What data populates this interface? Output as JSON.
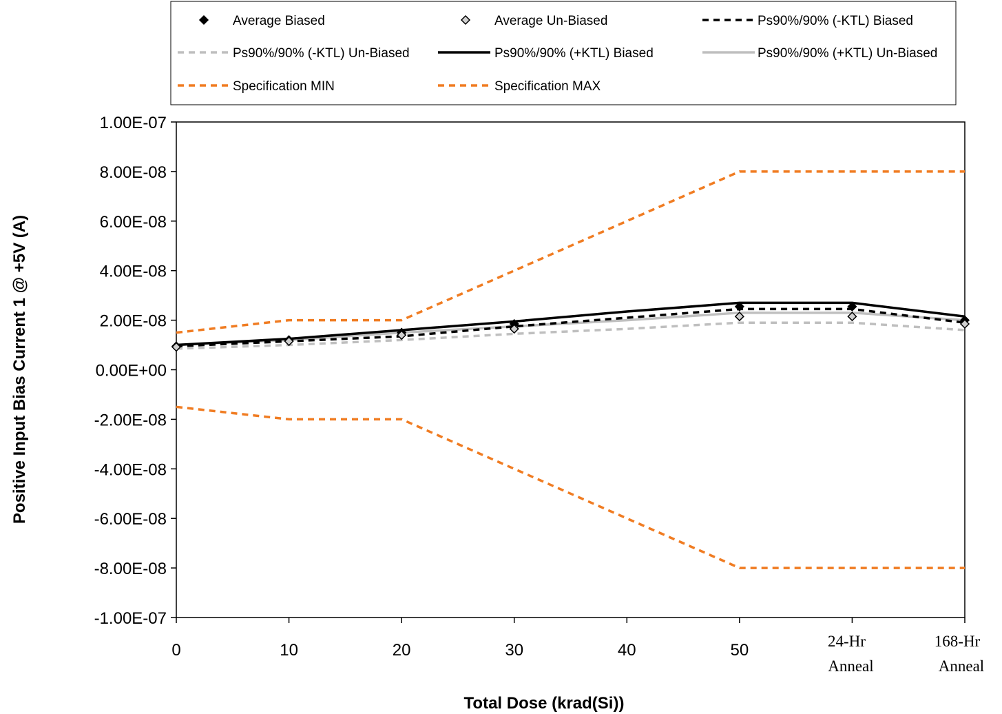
{
  "chart_data": {
    "type": "line",
    "title": "",
    "xlabel": "Total Dose (krad(Si))",
    "ylabel": "Positive Input Bias Current 1 @ +5V (A)",
    "x": [
      0,
      10,
      20,
      30,
      40,
      50,
      60,
      70
    ],
    "x_tick_labels": [
      [
        "0"
      ],
      [
        "10"
      ],
      [
        "20"
      ],
      [
        "30"
      ],
      [
        "40"
      ],
      [
        "50"
      ],
      [
        "24-Hr",
        "Anneal"
      ],
      [
        "168-Hr",
        "Anneal"
      ]
    ],
    "ylim": [
      -1e-07,
      1e-07
    ],
    "y_ticks": [
      -1e-07,
      -8e-08,
      -6e-08,
      -4e-08,
      -2e-08,
      0,
      2e-08,
      4e-08,
      6e-08,
      8e-08,
      1e-07
    ],
    "y_tick_labels": [
      "-1.00E-07",
      "-8.00E-08",
      "-6.00E-08",
      "-4.00E-08",
      "-2.00E-08",
      "0.00E+00",
      "2.00E-08",
      "4.00E-08",
      "6.00E-08",
      "8.00E-08",
      "1.00E-07"
    ],
    "legend_position": "top",
    "series": [
      {
        "name": "Average Biased",
        "style": "marker-filled-diamond",
        "color": "#000000",
        "x": [
          0,
          10,
          20,
          30,
          50,
          60,
          70
        ],
        "values": [
          9.5e-09,
          1.2e-08,
          1.5e-08,
          1.85e-08,
          2.55e-08,
          2.55e-08,
          2e-08
        ]
      },
      {
        "name": "Average Un-Biased",
        "style": "marker-open-diamond",
        "color": "#000000",
        "x": [
          0,
          10,
          20,
          30,
          50,
          60,
          70
        ],
        "values": [
          9.2e-09,
          1.15e-08,
          1.4e-08,
          1.65e-08,
          2.15e-08,
          2.15e-08,
          1.85e-08
        ]
      },
      {
        "name": "Ps90%/90% (-KTL) Biased",
        "style": "dash",
        "color": "#000000",
        "x": [
          0,
          10,
          20,
          30,
          40,
          50,
          60,
          70
        ],
        "values": [
          9.5e-09,
          1.15e-08,
          1.35e-08,
          1.75e-08,
          2.1e-08,
          2.45e-08,
          2.45e-08,
          1.9e-08
        ]
      },
      {
        "name": "Ps90%/90% (-KTL) Un-Biased",
        "style": "dash",
        "color": "#bfbfbf",
        "x": [
          0,
          10,
          20,
          30,
          40,
          50,
          60,
          70
        ],
        "values": [
          8.5e-09,
          1e-08,
          1.2e-08,
          1.45e-08,
          1.65e-08,
          1.9e-08,
          1.9e-08,
          1.6e-08
        ]
      },
      {
        "name": "Ps90%/90% (+KTL) Biased",
        "style": "solid",
        "color": "#000000",
        "x": [
          0,
          10,
          20,
          30,
          40,
          50,
          60,
          70
        ],
        "values": [
          1e-08,
          1.25e-08,
          1.6e-08,
          1.95e-08,
          2.35e-08,
          2.7e-08,
          2.7e-08,
          2.15e-08
        ]
      },
      {
        "name": "Ps90%/90% (+KTL) Un-Biased",
        "style": "solid",
        "color": "#bfbfbf",
        "x": [
          0,
          10,
          20,
          30,
          40,
          50,
          60,
          70
        ],
        "values": [
          1e-08,
          1.2e-08,
          1.5e-08,
          1.75e-08,
          2e-08,
          2.3e-08,
          2.3e-08,
          2e-08
        ]
      },
      {
        "name": "Specification MIN",
        "style": "dash",
        "color": "#f07c22",
        "x": [
          0,
          10,
          20,
          30,
          40,
          50,
          60,
          70
        ],
        "values": [
          -1.5e-08,
          -2e-08,
          -2e-08,
          -4e-08,
          -6e-08,
          -8e-08,
          -8e-08,
          -8e-08
        ]
      },
      {
        "name": "Specification MAX",
        "style": "dash",
        "color": "#f07c22",
        "x": [
          0,
          10,
          20,
          30,
          40,
          50,
          60,
          70
        ],
        "values": [
          1.5e-08,
          2e-08,
          2e-08,
          4e-08,
          6e-08,
          8e-08,
          8e-08,
          8e-08
        ]
      }
    ]
  }
}
